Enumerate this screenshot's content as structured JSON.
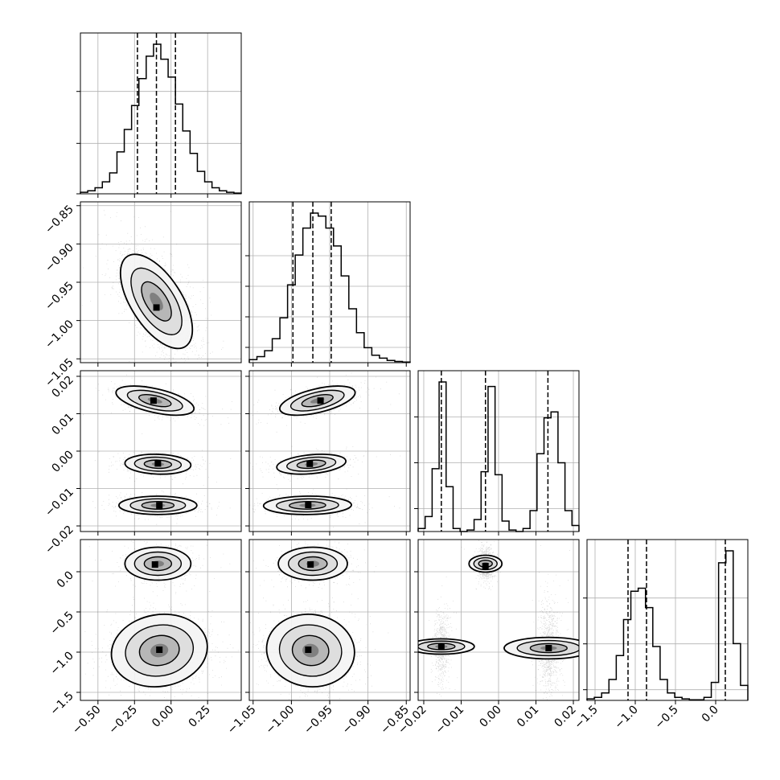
{
  "chart_data": {
    "type": "corner",
    "title": "",
    "parameters": [
      {
        "range": [
          -0.62,
          0.48
        ],
        "ticks": [
          -0.5,
          -0.25,
          0.0,
          0.25
        ],
        "tick_labels": [
          "−0.50",
          "−0.25",
          "0.00",
          "0.25"
        ],
        "quantiles": [
          -0.23,
          -0.1,
          0.03
        ],
        "hist": [
          0.01,
          0.02,
          0.04,
          0.08,
          0.14,
          0.28,
          0.43,
          0.59,
          0.77,
          0.92,
          1.0,
          0.9,
          0.78,
          0.6,
          0.42,
          0.27,
          0.15,
          0.08,
          0.04,
          0.02,
          0.01,
          0.005
        ],
        "hist_ticks": [
          0,
          0.33,
          0.67
        ],
        "label": ""
      },
      {
        "range": [
          -1.055,
          -0.845
        ],
        "ticks": [
          -1.05,
          -1.0,
          -0.95,
          -0.9,
          -0.85
        ],
        "tick_labels": [
          "−1.05",
          "−1.00",
          "−0.95",
          "−0.90",
          "−0.85"
        ],
        "quantiles": [
          -0.998,
          -0.972,
          -0.948
        ],
        "hist": [
          0.02,
          0.04,
          0.08,
          0.16,
          0.3,
          0.52,
          0.72,
          0.9,
          1.0,
          0.98,
          0.9,
          0.78,
          0.58,
          0.36,
          0.2,
          0.1,
          0.05,
          0.03,
          0.015,
          0.008,
          0.004
        ],
        "hist_ticks": [
          0.1,
          0.3,
          0.5,
          0.7
        ],
        "label": ""
      },
      {
        "range": [
          -0.0215,
          0.0215
        ],
        "ticks": [
          -0.02,
          -0.01,
          0.0,
          0.01,
          0.02
        ],
        "tick_labels": [
          "−0.02",
          "−0.01",
          "0.00",
          "0.01",
          "0.02"
        ],
        "quantiles": [
          -0.0153,
          -0.0035,
          0.0132
        ],
        "hist": [
          0.02,
          0.1,
          0.42,
          1.0,
          0.3,
          0.02,
          0.0,
          0.01,
          0.08,
          0.4,
          0.97,
          0.38,
          0.07,
          0.01,
          0.0,
          0.02,
          0.14,
          0.52,
          0.76,
          0.8,
          0.46,
          0.14,
          0.04
        ],
        "hist_ticks": [
          0.15,
          0.45,
          0.75
        ],
        "label": ""
      },
      {
        "range": [
          -1.6,
          0.4
        ],
        "ticks": [
          -1.5,
          -1.0,
          -0.5,
          0.0
        ],
        "tick_labels": [
          "−1.5",
          "−1.0",
          "−0.5",
          "0.0"
        ],
        "quantiles": [
          -1.09,
          -0.86,
          0.12
        ],
        "hist": [
          0.01,
          0.02,
          0.05,
          0.14,
          0.3,
          0.54,
          0.73,
          0.75,
          0.62,
          0.36,
          0.14,
          0.05,
          0.02,
          0.01,
          0.004,
          0.004,
          0.02,
          0.12,
          0.92,
          1.0,
          0.38,
          0.1
        ],
        "hist_ticks": [
          0.07,
          0.37,
          0.67
        ],
        "label": ""
      }
    ],
    "blobs": {
      "1-0": [
        {
          "mx": -0.1,
          "my": -0.975,
          "sx": 0.12,
          "sy": 0.03,
          "rho": -0.6,
          "n": 2600,
          "peak": [
            -0.1,
            -0.983
          ]
        }
      ],
      "2-0": [
        {
          "mx": -0.11,
          "my": 0.0135,
          "sx": 0.13,
          "sy": 0.0019,
          "rho": -0.55,
          "n": 900,
          "peak": [
            -0.12,
            0.0135
          ]
        },
        {
          "mx": -0.09,
          "my": -0.0035,
          "sx": 0.11,
          "sy": 0.0013,
          "rho": -0.1,
          "n": 900,
          "peak": [
            -0.09,
            -0.0033
          ]
        },
        {
          "mx": -0.09,
          "my": -0.0145,
          "sx": 0.13,
          "sy": 0.0012,
          "rho": 0.0,
          "n": 900,
          "peak": [
            -0.08,
            -0.0145
          ]
        }
      ],
      "2-1": [
        {
          "mx": -0.966,
          "my": 0.0135,
          "sx": 0.024,
          "sy": 0.0019,
          "rho": 0.55,
          "n": 900,
          "peak": [
            -0.962,
            0.0135
          ]
        },
        {
          "mx": -0.974,
          "my": -0.0035,
          "sx": 0.022,
          "sy": 0.0013,
          "rho": 0.3,
          "n": 900,
          "peak": [
            -0.976,
            -0.0034
          ]
        },
        {
          "mx": -0.979,
          "my": -0.0145,
          "sx": 0.028,
          "sy": 0.0012,
          "rho": 0.05,
          "n": 900,
          "peak": [
            -0.978,
            -0.0144
          ]
        }
      ],
      "3-0": [
        {
          "mx": -0.09,
          "my": 0.1,
          "sx": 0.11,
          "sy": 0.1,
          "rho": 0.0,
          "n": 900,
          "peak": [
            -0.11,
            0.09
          ]
        },
        {
          "mx": -0.08,
          "my": -0.98,
          "sx": 0.16,
          "sy": 0.22,
          "rho": 0.1,
          "n": 1800,
          "peak": [
            -0.08,
            -0.97
          ]
        }
      ],
      "3-1": [
        {
          "mx": -0.972,
          "my": 0.1,
          "sx": 0.022,
          "sy": 0.1,
          "rho": 0.0,
          "n": 900,
          "peak": [
            -0.975,
            0.09
          ]
        },
        {
          "mx": -0.975,
          "my": -0.98,
          "sx": 0.028,
          "sy": 0.22,
          "rho": -0.05,
          "n": 1800,
          "peak": [
            -0.978,
            -0.97
          ]
        }
      ],
      "3-2": [
        {
          "mx": -0.0035,
          "my": 0.1,
          "sx": 0.0011,
          "sy": 0.1,
          "rho": 0.0,
          "n": 800,
          "peak": [
            -0.0035,
            0.07
          ]
        },
        {
          "mx": -0.0153,
          "my": -0.93,
          "sx": 0.001,
          "sy": 0.2,
          "rho": 0.0,
          "n": 700,
          "peak": [
            -0.0153,
            -0.93
          ]
        },
        {
          "mx": 0.0134,
          "my": -0.95,
          "sx": 0.0014,
          "sy": 0.27,
          "rho": 0.0,
          "n": 1000,
          "peak": [
            0.0134,
            -0.95
          ]
        }
      ]
    },
    "grid": true,
    "legend": "none"
  }
}
